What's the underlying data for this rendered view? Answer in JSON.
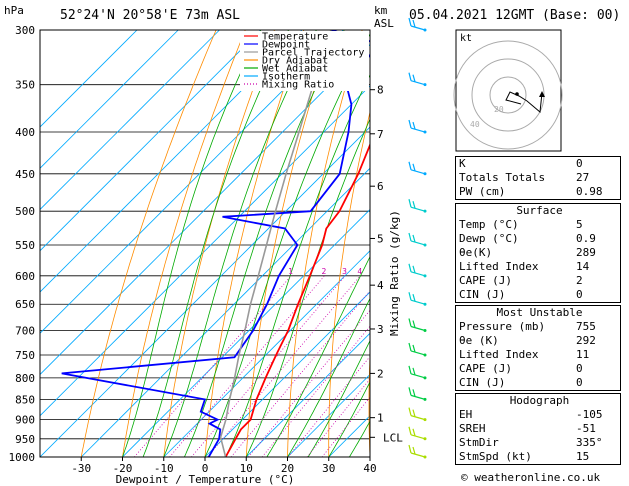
{
  "header": {
    "location": "52°24'N 20°58'E 73m ASL",
    "datetime": "05.04.2021 12GMT (Base: 00)",
    "hpa_label": "hPa",
    "km_label": "km",
    "asl_label": "ASL",
    "mixing_axis_label": "Mixing Ratio (g/kg)",
    "footer": "© weatheronline.co.uk"
  },
  "legend": {
    "items": [
      {
        "label": "Temperature",
        "color": "#ff0000",
        "style": "solid"
      },
      {
        "label": "Dewpoint",
        "color": "#0000ff",
        "style": "solid"
      },
      {
        "label": "Parcel Trajectory",
        "color": "#999999",
        "style": "solid"
      },
      {
        "label": "Dry Adiabat",
        "color": "#ff8c00",
        "style": "solid"
      },
      {
        "label": "Wet Adiabat",
        "color": "#00aa00",
        "style": "solid"
      },
      {
        "label": "Isotherm",
        "color": "#00aaff",
        "style": "solid"
      },
      {
        "label": "Mixing Ratio",
        "color": "#cc00aa",
        "style": "dotted"
      }
    ]
  },
  "chart_data": {
    "type": "line",
    "xlabel": "Dewpoint / Temperature (°C)",
    "x_ticks": [
      -30,
      -20,
      -10,
      0,
      10,
      20,
      30,
      40
    ],
    "xlim": [
      -40,
      40
    ],
    "ylim": [
      1000,
      300
    ],
    "y_ticks": [
      300,
      350,
      400,
      450,
      500,
      550,
      600,
      650,
      700,
      750,
      800,
      850,
      900,
      950,
      1000
    ],
    "km_ticks": [
      {
        "label": "8",
        "p": 355
      },
      {
        "label": "7",
        "p": 402
      },
      {
        "label": "6",
        "p": 466
      },
      {
        "label": "5",
        "p": 540
      },
      {
        "label": "4",
        "p": 616
      },
      {
        "label": "3",
        "p": 697
      },
      {
        "label": "2",
        "p": 790
      },
      {
        "label": "1",
        "p": 895
      },
      {
        "label": "LCL",
        "p": 946
      }
    ],
    "mixing_ratio_labels": [
      "1",
      "2",
      "3",
      "4",
      "6",
      "8",
      "10",
      "15",
      "20",
      "25"
    ],
    "series": [
      {
        "name": "Temperature",
        "color": "#ff0000",
        "points": [
          [
            1000,
            5
          ],
          [
            950,
            3
          ],
          [
            925,
            2
          ],
          [
            900,
            2
          ],
          [
            850,
            -1.5
          ],
          [
            800,
            -4.5
          ],
          [
            750,
            -7.5
          ],
          [
            700,
            -10.5
          ],
          [
            650,
            -14.5
          ],
          [
            600,
            -18.5
          ],
          [
            550,
            -23
          ],
          [
            525,
            -26
          ],
          [
            500,
            -27
          ],
          [
            450,
            -31.5
          ],
          [
            400,
            -37.5
          ],
          [
            350,
            -44.5
          ],
          [
            300,
            -52
          ]
        ]
      },
      {
        "name": "Dewpoint",
        "color": "#0000ff",
        "points": [
          [
            1000,
            0.9
          ],
          [
            950,
            -1
          ],
          [
            925,
            -3
          ],
          [
            910,
            -7
          ],
          [
            900,
            -6
          ],
          [
            880,
            -12
          ],
          [
            850,
            -14
          ],
          [
            790,
            -55
          ],
          [
            755,
            -17
          ],
          [
            700,
            -19
          ],
          [
            650,
            -22
          ],
          [
            600,
            -26
          ],
          [
            550,
            -29
          ],
          [
            525,
            -36
          ],
          [
            508,
            -54
          ],
          [
            500,
            -34
          ],
          [
            450,
            -36
          ],
          [
            400,
            -44
          ],
          [
            370,
            -50
          ],
          [
            350,
            -56
          ],
          [
            312,
            -58
          ],
          [
            300,
            -73
          ]
        ]
      },
      {
        "name": "Parcel Trajectory",
        "color": "#999999",
        "points": [
          [
            1000,
            5
          ],
          [
            946,
            -1
          ],
          [
            900,
            -4
          ],
          [
            850,
            -8
          ],
          [
            800,
            -12
          ],
          [
            750,
            -16.5
          ],
          [
            700,
            -21
          ],
          [
            650,
            -26
          ],
          [
            600,
            -31
          ],
          [
            550,
            -36.5
          ],
          [
            500,
            -42.5
          ],
          [
            450,
            -49
          ],
          [
            400,
            -56
          ],
          [
            350,
            -64
          ],
          [
            300,
            -73
          ]
        ]
      }
    ]
  },
  "hodograph": {
    "label": "kt",
    "rings": [
      "20",
      "40"
    ]
  },
  "indices": {
    "basic": [
      {
        "label": "K",
        "value": "0"
      },
      {
        "label": "Totals Totals",
        "value": "27"
      },
      {
        "label": "PW (cm)",
        "value": "0.98"
      }
    ],
    "surface": {
      "title": "Surface",
      "rows": [
        {
          "label": "Temp (°C)",
          "value": "5"
        },
        {
          "label": "Dewp (°C)",
          "value": "0.9"
        },
        {
          "label": "θe(K)",
          "value": "289"
        },
        {
          "label": "Lifted Index",
          "value": "14"
        },
        {
          "label": "CAPE (J)",
          "value": "2"
        },
        {
          "label": "CIN (J)",
          "value": "0"
        }
      ]
    },
    "most_unstable": {
      "title": "Most Unstable",
      "rows": [
        {
          "label": "Pressure (mb)",
          "value": "755"
        },
        {
          "label": "θe (K)",
          "value": "292"
        },
        {
          "label": "Lifted Index",
          "value": "11"
        },
        {
          "label": "CAPE (J)",
          "value": "0"
        },
        {
          "label": "CIN (J)",
          "value": "0"
        }
      ]
    },
    "hodograph": {
      "title": "Hodograph",
      "rows": [
        {
          "label": "EH",
          "value": "-105"
        },
        {
          "label": "SREH",
          "value": "-51"
        },
        {
          "label": "StmDir",
          "value": "335°"
        },
        {
          "label": "StmSpd (kt)",
          "value": "15"
        }
      ]
    }
  }
}
